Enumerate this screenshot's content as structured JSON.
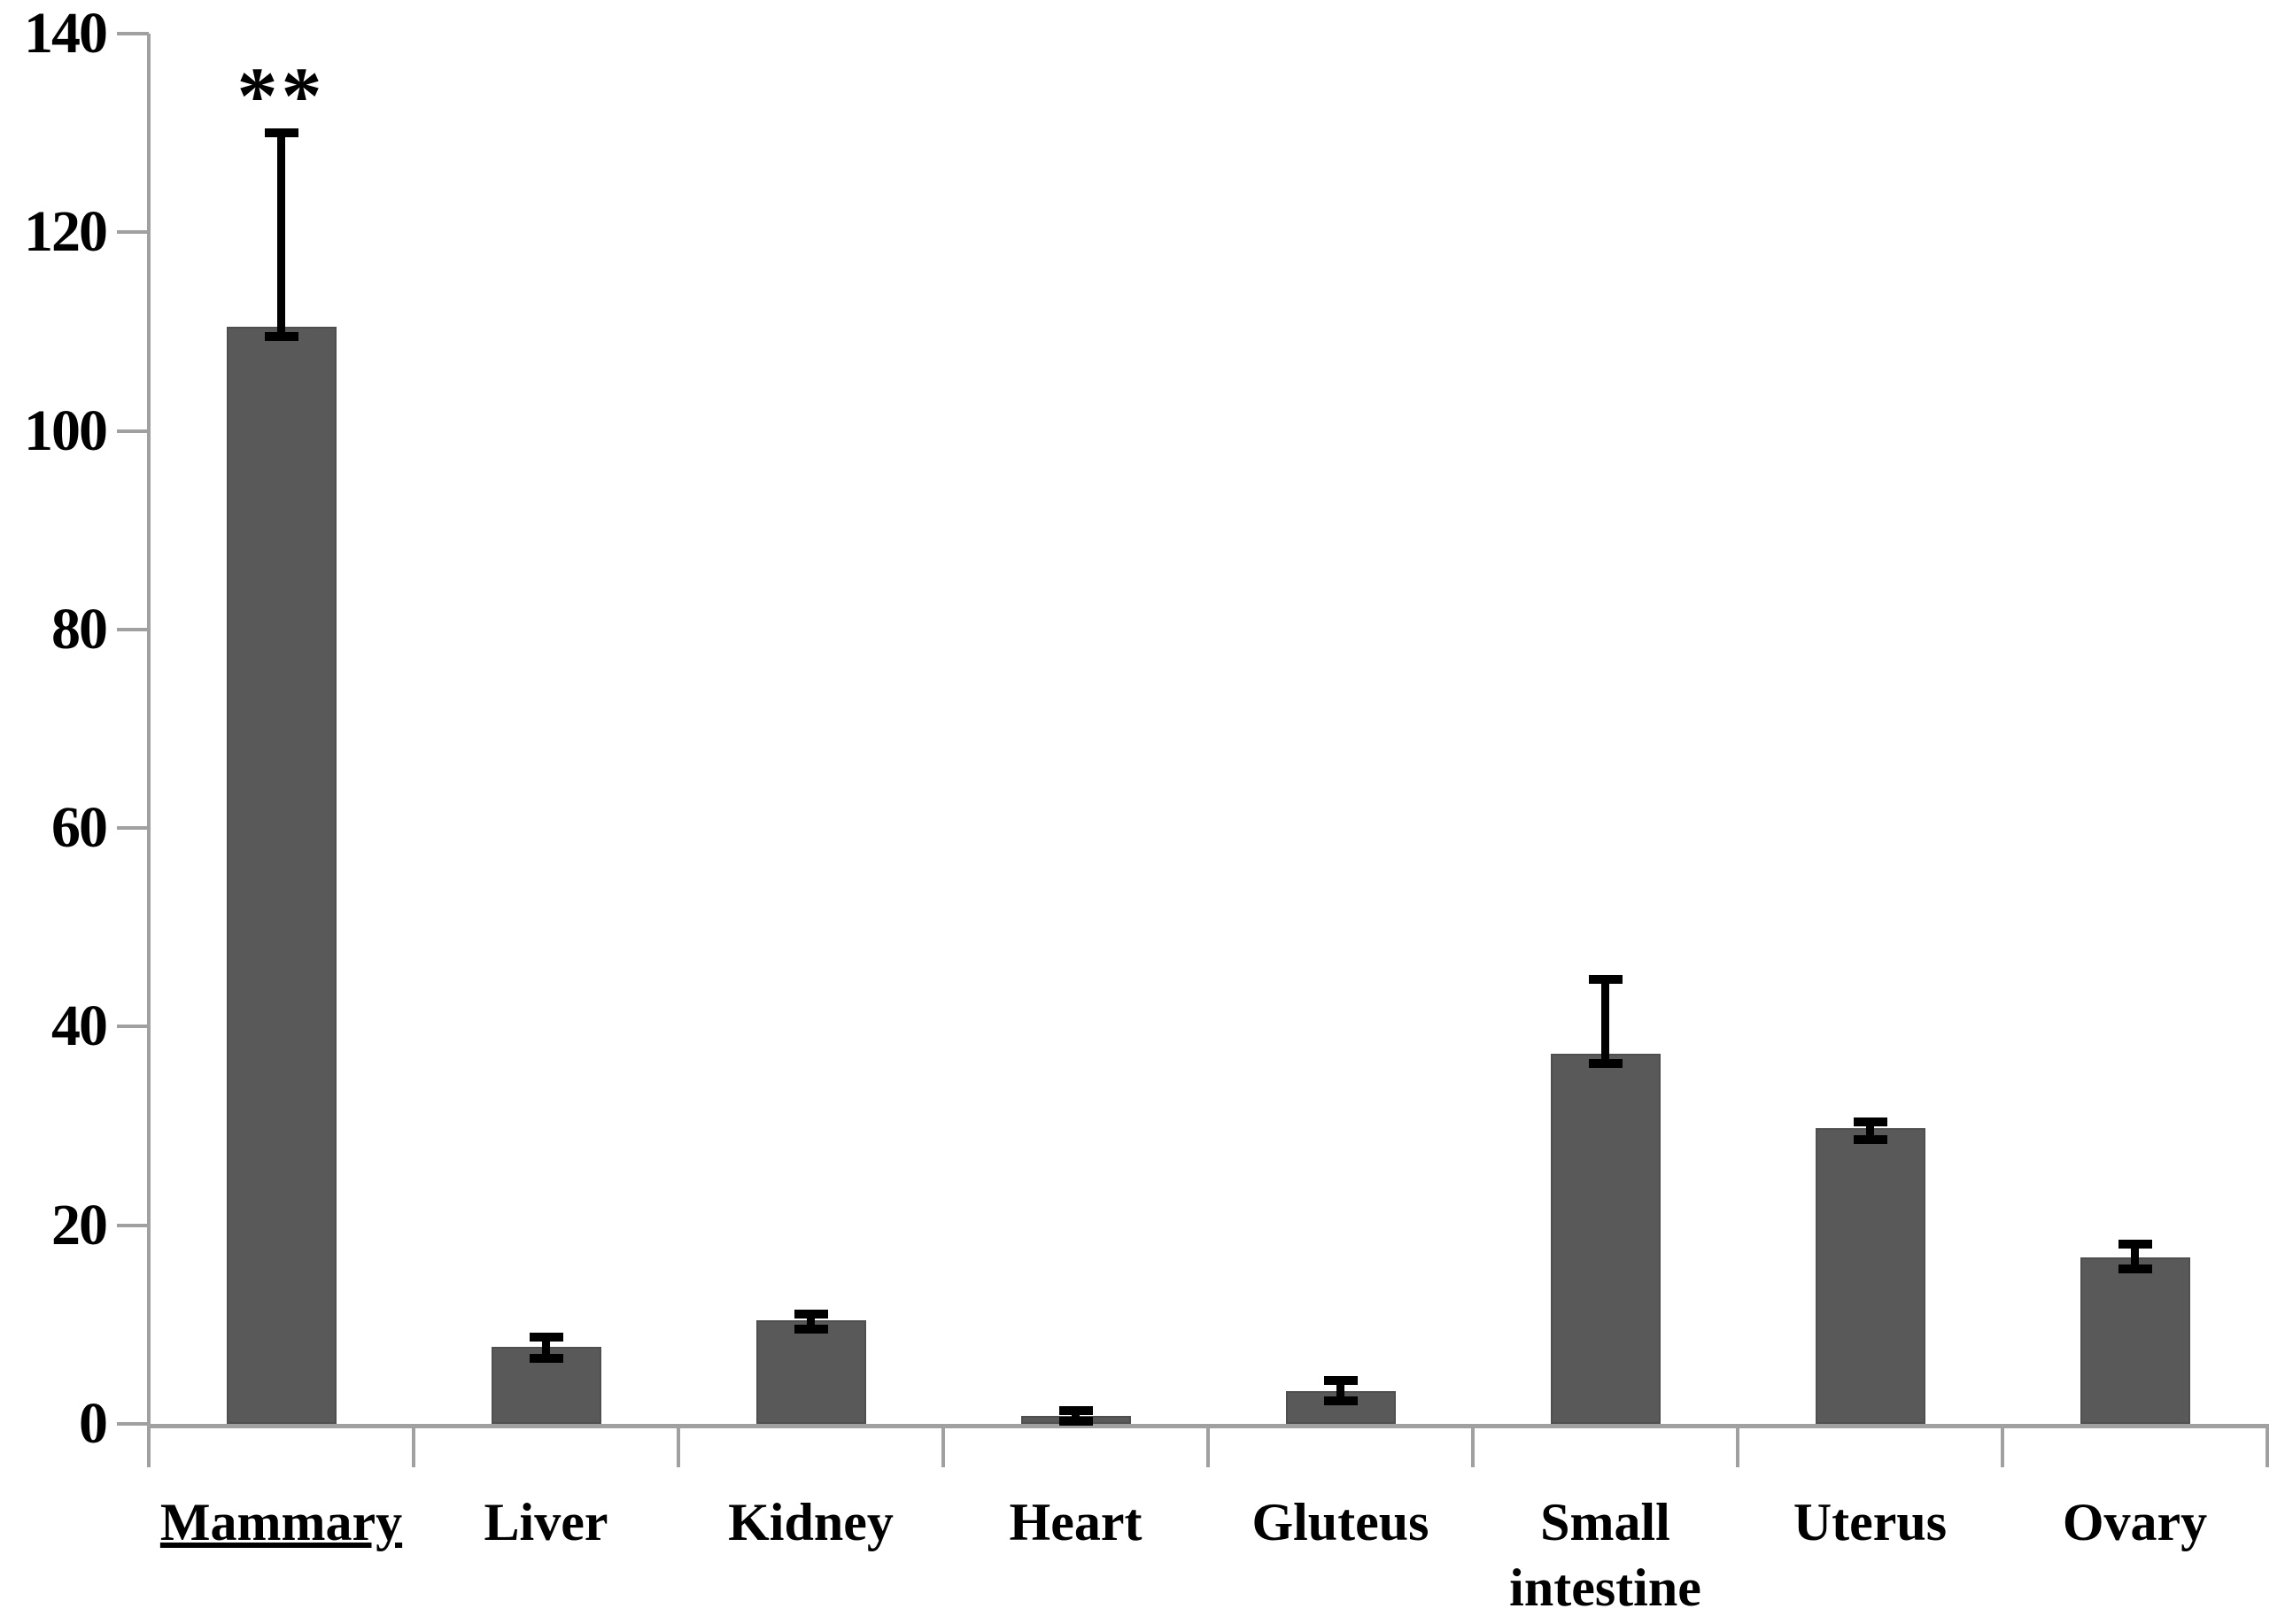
{
  "figure": {
    "background": "#ffffff"
  },
  "chart_data": {
    "type": "bar",
    "title": "",
    "xlabel": "",
    "ylabel": "",
    "categories": [
      "Mammary",
      "Liver",
      "Kidney",
      "Heart",
      "Gluteus",
      "Small intestine",
      "Uterus",
      "Ovary"
    ],
    "values": [
      110.5,
      7.8,
      10.4,
      0.8,
      3.3,
      37.3,
      29.8,
      16.8
    ],
    "error_up": [
      19.5,
      0.9,
      0.7,
      0.5,
      1.1,
      7.5,
      0.6,
      1.3
    ],
    "error_down": [
      1.0,
      1.2,
      0.9,
      0.5,
      1.0,
      1.0,
      1.2,
      1.2
    ],
    "significance": [
      "**",
      "",
      "",
      "",
      "",
      "",
      "",
      ""
    ],
    "underlined_categories": [
      "Mammary"
    ],
    "ylim": [
      0,
      140
    ],
    "yticks": [
      0,
      20,
      40,
      60,
      80,
      100,
      120,
      140
    ],
    "grid": false,
    "legend": false,
    "bar_color": "#595959",
    "bar_border_color": "#4f4f4f",
    "axis_color": "#a0a0a0",
    "error_color": "#000000",
    "text_color": "#000000"
  }
}
